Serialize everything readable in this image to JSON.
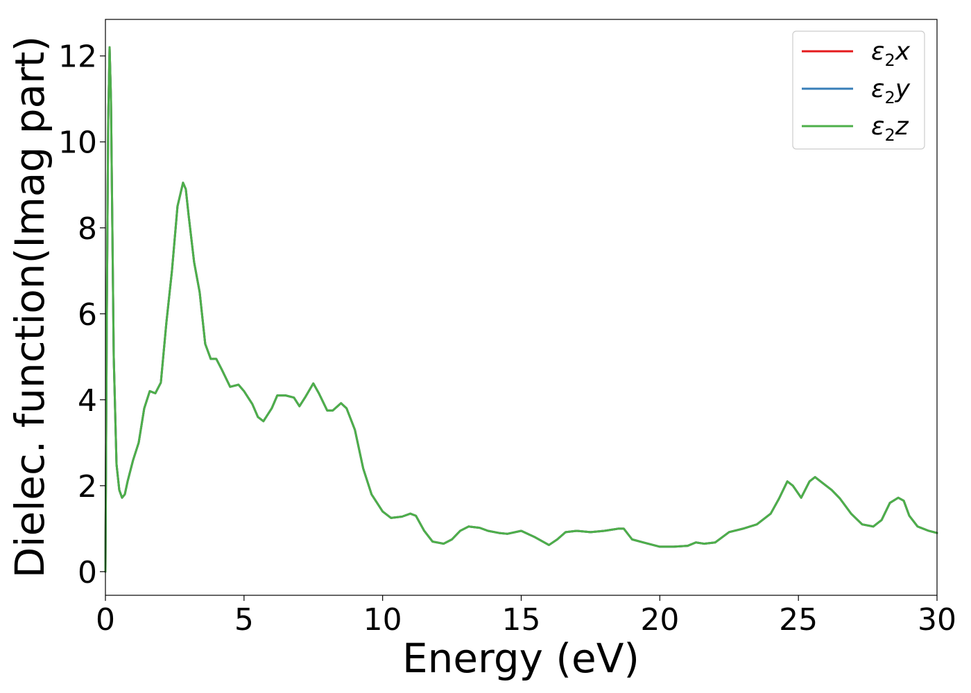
{
  "chart_data": {
    "type": "line",
    "title": "",
    "xlabel": "Energy (eV)",
    "ylabel": "Dielec. function(Imag part)",
    "xlim": [
      0,
      30
    ],
    "ylim": [
      -0.55,
      12.85
    ],
    "xticks": [
      0,
      5,
      10,
      15,
      20,
      25,
      30
    ],
    "yticks": [
      0,
      2,
      4,
      6,
      8,
      10,
      12
    ],
    "grid": false,
    "legend_position": "top-right",
    "legend": [
      {
        "symbol": "ε",
        "sub": "2",
        "axis": "x",
        "color": "#e41a1c"
      },
      {
        "symbol": "ε",
        "sub": "2",
        "axis": "y",
        "color": "#377eb8"
      },
      {
        "symbol": "ε",
        "sub": "2",
        "axis": "z",
        "color": "#4daf4a"
      }
    ],
    "series": [
      {
        "color": "#e41a1c",
        "x": [
          0,
          0.05,
          0.1,
          0.15,
          0.2,
          0.25,
          0.3,
          0.4,
          0.5,
          0.6,
          0.7,
          0.8,
          1.0,
          1.2,
          1.4,
          1.6,
          1.8,
          2.0,
          2.2,
          2.4,
          2.6,
          2.8,
          2.9,
          3.0,
          3.2,
          3.4,
          3.6,
          3.8,
          4.0,
          4.2,
          4.5,
          4.8,
          5.0,
          5.3,
          5.5,
          5.7,
          6.0,
          6.2,
          6.5,
          6.8,
          7.0,
          7.2,
          7.5,
          7.7,
          8.0,
          8.2,
          8.5,
          8.7,
          9.0,
          9.3,
          9.6,
          10.0,
          10.3,
          10.7,
          11.0,
          11.2,
          11.5,
          11.8,
          12.2,
          12.5,
          12.8,
          13.1,
          13.5,
          13.8,
          14.2,
          14.5,
          15.0,
          15.5,
          16.0,
          16.3,
          16.6,
          17.0,
          17.5,
          18.0,
          18.5,
          18.7,
          19.0,
          19.4,
          20.0,
          20.5,
          21.0,
          21.3,
          21.6,
          22.0,
          22.5,
          23.0,
          23.5,
          24.0,
          24.3,
          24.6,
          24.8,
          25.1,
          25.4,
          25.6,
          25.9,
          26.2,
          26.5,
          26.9,
          27.3,
          27.7,
          28.0,
          28.3,
          28.6,
          28.8,
          29.0,
          29.3,
          29.7,
          30.0
        ],
        "values": [
          0,
          6.0,
          10.5,
          12.2,
          11.0,
          8.0,
          5.0,
          2.5,
          1.9,
          1.72,
          1.8,
          2.1,
          2.6,
          3.0,
          3.8,
          4.2,
          4.15,
          4.4,
          5.8,
          7.0,
          8.5,
          9.05,
          8.9,
          8.3,
          7.2,
          6.5,
          5.3,
          4.95,
          4.95,
          4.7,
          4.3,
          4.35,
          4.2,
          3.9,
          3.6,
          3.5,
          3.8,
          4.1,
          4.1,
          4.05,
          3.85,
          4.05,
          4.38,
          4.15,
          3.75,
          3.75,
          3.92,
          3.8,
          3.3,
          2.4,
          1.8,
          1.4,
          1.25,
          1.28,
          1.35,
          1.3,
          0.95,
          0.7,
          0.65,
          0.75,
          0.95,
          1.05,
          1.02,
          0.95,
          0.9,
          0.88,
          0.95,
          0.8,
          0.62,
          0.75,
          0.92,
          0.95,
          0.92,
          0.95,
          1.0,
          1.0,
          0.75,
          0.68,
          0.58,
          0.58,
          0.6,
          0.68,
          0.65,
          0.68,
          0.92,
          1.0,
          1.1,
          1.35,
          1.7,
          2.1,
          2.0,
          1.72,
          2.1,
          2.2,
          2.05,
          1.9,
          1.7,
          1.35,
          1.1,
          1.05,
          1.2,
          1.6,
          1.72,
          1.65,
          1.3,
          1.05,
          0.95,
          0.9
        ]
      },
      {
        "color": "#377eb8",
        "x": [
          0,
          0.05,
          0.1,
          0.15,
          0.2,
          0.25,
          0.3,
          0.4,
          0.5,
          0.6,
          0.7,
          0.8,
          1.0,
          1.2,
          1.4,
          1.6,
          1.8,
          2.0,
          2.2,
          2.4,
          2.6,
          2.8,
          2.9,
          3.0,
          3.2,
          3.4,
          3.6,
          3.8,
          4.0,
          4.2,
          4.5,
          4.8,
          5.0,
          5.3,
          5.5,
          5.7,
          6.0,
          6.2,
          6.5,
          6.8,
          7.0,
          7.2,
          7.5,
          7.7,
          8.0,
          8.2,
          8.5,
          8.7,
          9.0,
          9.3,
          9.6,
          10.0,
          10.3,
          10.7,
          11.0,
          11.2,
          11.5,
          11.8,
          12.2,
          12.5,
          12.8,
          13.1,
          13.5,
          13.8,
          14.2,
          14.5,
          15.0,
          15.5,
          16.0,
          16.3,
          16.6,
          17.0,
          17.5,
          18.0,
          18.5,
          18.7,
          19.0,
          19.4,
          20.0,
          20.5,
          21.0,
          21.3,
          21.6,
          22.0,
          22.5,
          23.0,
          23.5,
          24.0,
          24.3,
          24.6,
          24.8,
          25.1,
          25.4,
          25.6,
          25.9,
          26.2,
          26.5,
          26.9,
          27.3,
          27.7,
          28.0,
          28.3,
          28.6,
          28.8,
          29.0,
          29.3,
          29.7,
          30.0
        ],
        "values": [
          0,
          6.0,
          10.5,
          12.2,
          11.0,
          8.0,
          5.0,
          2.5,
          1.9,
          1.72,
          1.8,
          2.1,
          2.6,
          3.0,
          3.8,
          4.2,
          4.15,
          4.4,
          5.8,
          7.0,
          8.5,
          9.05,
          8.9,
          8.3,
          7.2,
          6.5,
          5.3,
          4.95,
          4.95,
          4.7,
          4.3,
          4.35,
          4.2,
          3.9,
          3.6,
          3.5,
          3.8,
          4.1,
          4.1,
          4.05,
          3.85,
          4.05,
          4.38,
          4.15,
          3.75,
          3.75,
          3.92,
          3.8,
          3.3,
          2.4,
          1.8,
          1.4,
          1.25,
          1.28,
          1.35,
          1.3,
          0.95,
          0.7,
          0.65,
          0.75,
          0.95,
          1.05,
          1.02,
          0.95,
          0.9,
          0.88,
          0.95,
          0.8,
          0.62,
          0.75,
          0.92,
          0.95,
          0.92,
          0.95,
          1.0,
          1.0,
          0.75,
          0.68,
          0.58,
          0.58,
          0.6,
          0.68,
          0.65,
          0.68,
          0.92,
          1.0,
          1.1,
          1.35,
          1.7,
          2.1,
          2.0,
          1.72,
          2.1,
          2.2,
          2.05,
          1.9,
          1.7,
          1.35,
          1.1,
          1.05,
          1.2,
          1.6,
          1.72,
          1.65,
          1.3,
          1.05,
          0.95,
          0.9
        ]
      },
      {
        "color": "#4daf4a",
        "x": [
          0,
          0.05,
          0.1,
          0.15,
          0.2,
          0.25,
          0.3,
          0.4,
          0.5,
          0.6,
          0.7,
          0.8,
          1.0,
          1.2,
          1.4,
          1.6,
          1.8,
          2.0,
          2.2,
          2.4,
          2.6,
          2.8,
          2.9,
          3.0,
          3.2,
          3.4,
          3.6,
          3.8,
          4.0,
          4.2,
          4.5,
          4.8,
          5.0,
          5.3,
          5.5,
          5.7,
          6.0,
          6.2,
          6.5,
          6.8,
          7.0,
          7.2,
          7.5,
          7.7,
          8.0,
          8.2,
          8.5,
          8.7,
          9.0,
          9.3,
          9.6,
          10.0,
          10.3,
          10.7,
          11.0,
          11.2,
          11.5,
          11.8,
          12.2,
          12.5,
          12.8,
          13.1,
          13.5,
          13.8,
          14.2,
          14.5,
          15.0,
          15.5,
          16.0,
          16.3,
          16.6,
          17.0,
          17.5,
          18.0,
          18.5,
          18.7,
          19.0,
          19.4,
          20.0,
          20.5,
          21.0,
          21.3,
          21.6,
          22.0,
          22.5,
          23.0,
          23.5,
          24.0,
          24.3,
          24.6,
          24.8,
          25.1,
          25.4,
          25.6,
          25.9,
          26.2,
          26.5,
          26.9,
          27.3,
          27.7,
          28.0,
          28.3,
          28.6,
          28.8,
          29.0,
          29.3,
          29.7,
          30.0
        ],
        "values": [
          0,
          6.0,
          10.5,
          12.2,
          11.0,
          8.0,
          5.0,
          2.5,
          1.9,
          1.72,
          1.8,
          2.1,
          2.6,
          3.0,
          3.8,
          4.2,
          4.15,
          4.4,
          5.8,
          7.0,
          8.5,
          9.05,
          8.9,
          8.3,
          7.2,
          6.5,
          5.3,
          4.95,
          4.95,
          4.7,
          4.3,
          4.35,
          4.2,
          3.9,
          3.6,
          3.5,
          3.8,
          4.1,
          4.1,
          4.05,
          3.85,
          4.05,
          4.38,
          4.15,
          3.75,
          3.75,
          3.92,
          3.8,
          3.3,
          2.4,
          1.8,
          1.4,
          1.25,
          1.28,
          1.35,
          1.3,
          0.95,
          0.7,
          0.65,
          0.75,
          0.95,
          1.05,
          1.02,
          0.95,
          0.9,
          0.88,
          0.95,
          0.8,
          0.62,
          0.75,
          0.92,
          0.95,
          0.92,
          0.95,
          1.0,
          1.0,
          0.75,
          0.68,
          0.58,
          0.58,
          0.6,
          0.68,
          0.65,
          0.68,
          0.92,
          1.0,
          1.1,
          1.35,
          1.7,
          2.1,
          2.0,
          1.72,
          2.1,
          2.2,
          2.05,
          1.9,
          1.7,
          1.35,
          1.1,
          1.05,
          1.2,
          1.6,
          1.72,
          1.65,
          1.3,
          1.05,
          0.95,
          0.9
        ]
      }
    ]
  }
}
